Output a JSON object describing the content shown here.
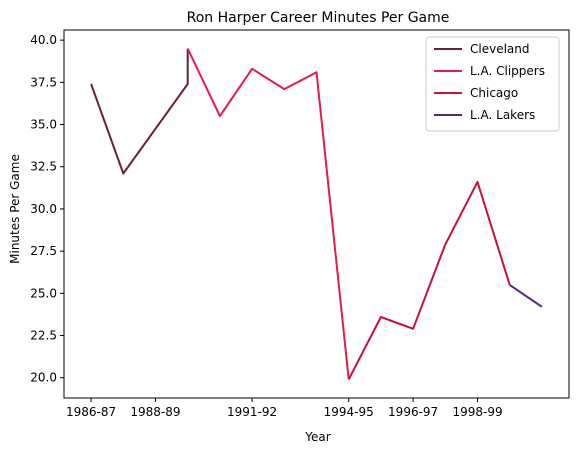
{
  "chart_data": {
    "type": "line",
    "title": "Ron Harper Career Minutes Per Game",
    "xlabel": "Year",
    "ylabel": "Minutes Per Game",
    "x_tick_labels": [
      "1986-87",
      "1988-89",
      "1991-92",
      "1994-95",
      "1996-97",
      "1998-99"
    ],
    "x_tick_positions": [
      0,
      2,
      5,
      8,
      10,
      12
    ],
    "xlim": [
      -0.84,
      14.84
    ],
    "ylim": [
      18.8,
      40.6
    ],
    "y_ticks": [
      20.0,
      22.5,
      25.0,
      27.5,
      30.0,
      32.5,
      35.0,
      37.5,
      40.0
    ],
    "legend_position": "top-right",
    "series": [
      {
        "name": "Cleveland",
        "color": "#6b2138",
        "x": [
          0,
          1,
          3,
          3
        ],
        "y": [
          37.4,
          32.1,
          37.4,
          39.5
        ]
      },
      {
        "name": "L.A. Clippers",
        "color": "#e8194d",
        "x": [
          3,
          4,
          5,
          6,
          7,
          8
        ],
        "y": [
          39.5,
          35.5,
          38.3,
          37.1,
          38.1,
          19.9
        ]
      },
      {
        "name": "Chicago",
        "color": "#c8103a",
        "x": [
          8,
          9,
          10,
          11,
          12,
          13
        ],
        "y": [
          19.9,
          23.6,
          22.9,
          27.9,
          31.6,
          25.5
        ]
      },
      {
        "name": "L.A. Lakers",
        "color": "#552583",
        "x": [
          13,
          14
        ],
        "y": [
          25.5,
          24.2
        ]
      }
    ]
  }
}
